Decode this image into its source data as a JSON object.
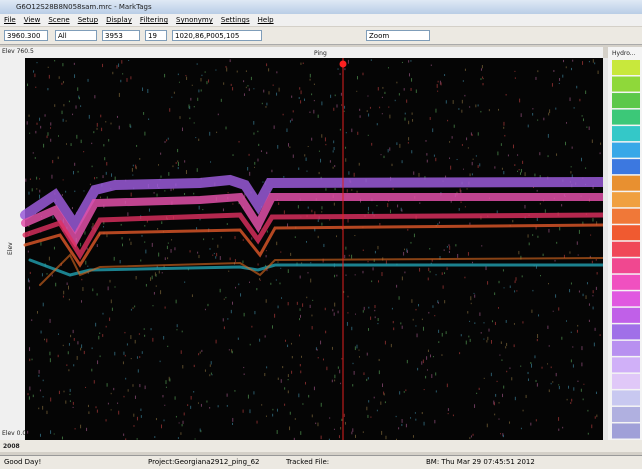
{
  "window": {
    "title": "G6O12S28B8N058sam.mrc - MarkTags"
  },
  "menu": [
    "File",
    "View",
    "Scene",
    "Setup",
    "Display",
    "Filtering",
    "Synonymy",
    "Settings",
    "Help"
  ],
  "toolbar": {
    "position": "3960.300",
    "filter": "All",
    "ping": "3953",
    "channel": "19",
    "coords": "1020,86,P005,105",
    "zoom": "Zoom"
  },
  "plot": {
    "top_label": "Ping",
    "left_label": "Elev",
    "top_left": "Elev 760.5",
    "bottom_left": "Elev 0.0",
    "scroll_value": "2008",
    "legend_title": "Hydro..."
  },
  "legend": {
    "colors": [
      "#c8e83c",
      "#8fd83a",
      "#5cc84a",
      "#3cc878",
      "#34c8c8",
      "#38a8e8",
      "#3c78e0",
      "#e89030",
      "#f0a040",
      "#f07838",
      "#f05a30",
      "#f04858",
      "#f04890",
      "#f050c0",
      "#e058e0",
      "#c060e8",
      "#a070e8",
      "#b890f0",
      "#d0b0f8",
      "#e0c8f8",
      "#c8c8f0",
      "#b0b0e0",
      "#a0a0d8"
    ]
  },
  "status": [
    "Good Day!",
    "Project:Georgiana2912_ping_62",
    "Tracked File:",
    "BM: Thu Mar 29 07:45:51 2012"
  ]
}
